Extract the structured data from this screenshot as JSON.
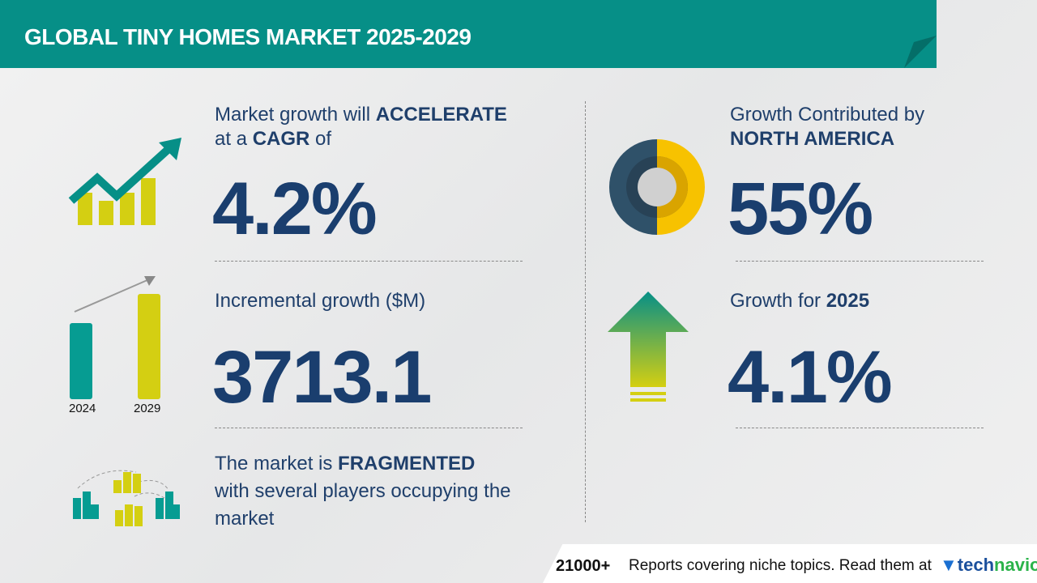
{
  "header": {
    "title": "GLOBAL TINY HOMES MARKET 2025-2029"
  },
  "cagr": {
    "line1_pre": "Market growth will ",
    "line1_bold": "ACCELERATE",
    "line2_pre": "at a ",
    "line2_bold": "CAGR",
    "line2_post": " of",
    "value": "4.2%"
  },
  "incremental": {
    "label": "Incremental growth ($M)",
    "value": "3713.1",
    "bar_years": [
      "2024",
      "2029"
    ]
  },
  "fragmented": {
    "line1_pre": "The market is ",
    "line1_bold": "FRAGMENTED",
    "line2": "with several players occupying the",
    "line3": "market"
  },
  "region": {
    "line1": "Growth Contributed by",
    "line2": "NORTH AMERICA",
    "value": "55%"
  },
  "growth_year": {
    "label_pre": "Growth for ",
    "label_bold": "2025",
    "value": "4.1%"
  },
  "footer": {
    "count": "21000+",
    "text": "Reports covering niche topics. Read them at",
    "brand_a": "tech",
    "brand_b": "navio"
  },
  "colors": {
    "teal": "#068f87",
    "navy": "#1a3e6e",
    "lime": "#d4cf12",
    "yellow": "#f7c200",
    "slate": "#2f5169"
  }
}
